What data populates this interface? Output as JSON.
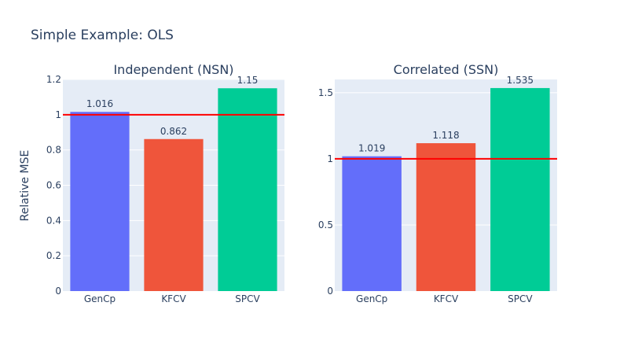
{
  "chart_title": "Simple Example: OLS",
  "chart_data": [
    {
      "type": "bar",
      "title": "Independent (NSN)",
      "categories": [
        "GenCp",
        "KFCV",
        "SPCV"
      ],
      "values": [
        1.016,
        0.862,
        1.15
      ],
      "value_labels": [
        "1.016",
        "0.862",
        "1.15"
      ],
      "ylabel": "Relative MSE",
      "ylim": [
        0,
        1.2
      ],
      "yticks": [
        0,
        0.2,
        0.4,
        0.6,
        0.8,
        1,
        1.2
      ],
      "ytick_labels": [
        "0",
        "0.2",
        "0.4",
        "0.6",
        "0.8",
        "1",
        "1.2"
      ],
      "reference_line": 1,
      "grid": true
    },
    {
      "type": "bar",
      "title": "Correlated (SSN)",
      "categories": [
        "GenCp",
        "KFCV",
        "SPCV"
      ],
      "values": [
        1.019,
        1.118,
        1.535
      ],
      "value_labels": [
        "1.019",
        "1.118",
        "1.535"
      ],
      "ylabel": "",
      "ylim": [
        0,
        1.6
      ],
      "yticks": [
        0,
        0.5,
        1,
        1.5
      ],
      "ytick_labels": [
        "0",
        "0.5",
        "1",
        "1.5"
      ],
      "reference_line": 1,
      "grid": true
    }
  ],
  "colors": {
    "bars": [
      "#636efa",
      "#ef553b",
      "#00cc96"
    ],
    "plot_bg": "#e5ecf6",
    "grid": "#ffffff",
    "reference_line": "#ff0000",
    "text": "#2a3f5f"
  }
}
